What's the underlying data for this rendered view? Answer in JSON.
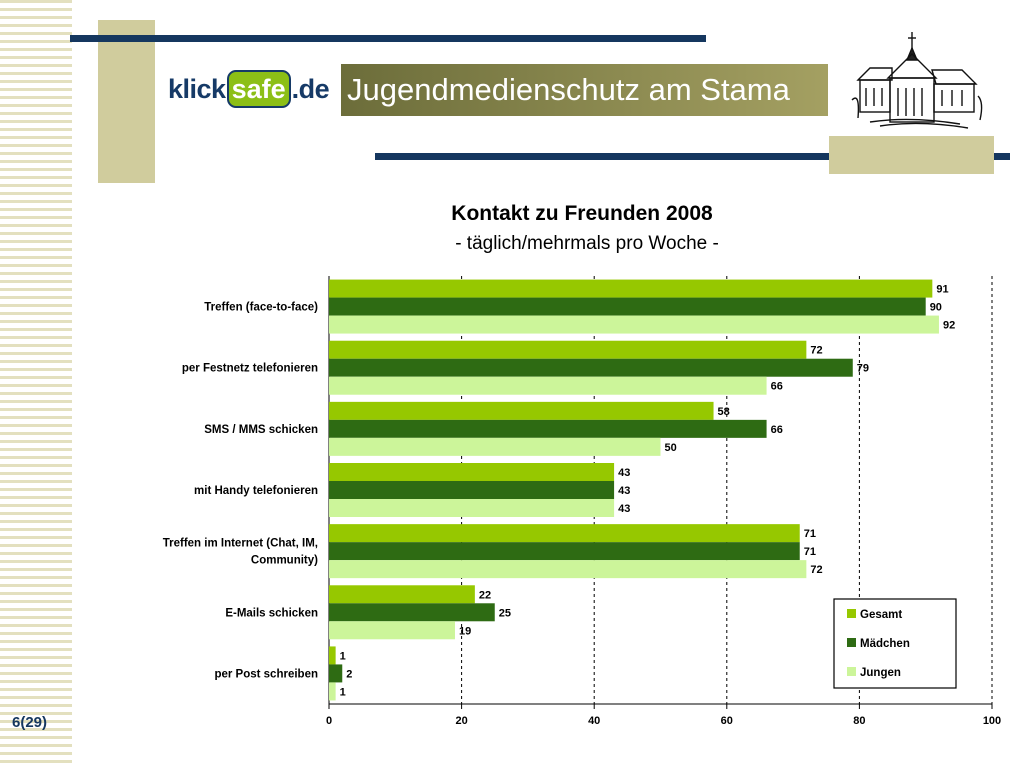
{
  "header": {
    "logo_klick": "klick",
    "logo_safe": "safe",
    "logo_de": ".de",
    "title": "Jugendmedienschutz am Stama"
  },
  "footer": {
    "page_number": "6(29)"
  },
  "colors": {
    "gesamt": "#96c800",
    "maedchen": "#2e6b13",
    "jungen": "#ccf59a",
    "navy": "#15375f",
    "tan": "#d0cc9d"
  },
  "chart_data": {
    "type": "bar",
    "orientation": "horizontal",
    "title": "Kontakt zu Freunden 2008",
    "subtitle": "- täglich/mehrmals pro Woche -",
    "categories": [
      [
        "Treffen (face-to-face)"
      ],
      [
        "per Festnetz telefonieren"
      ],
      [
        "SMS / MMS schicken"
      ],
      [
        "mit Handy telefonieren"
      ],
      [
        "Treffen im Internet (Chat, IM,",
        "Community)"
      ],
      [
        "E-Mails schicken"
      ],
      [
        "per Post schreiben"
      ]
    ],
    "series": [
      {
        "name": "Gesamt",
        "color": "#96c800",
        "values": [
          91,
          72,
          58,
          43,
          71,
          22,
          1
        ]
      },
      {
        "name": "Mädchen",
        "color": "#2e6b13",
        "values": [
          90,
          79,
          66,
          43,
          71,
          25,
          2
        ]
      },
      {
        "name": "Jungen",
        "color": "#ccf59a",
        "values": [
          92,
          66,
          50,
          43,
          72,
          19,
          1
        ]
      }
    ],
    "xlim": [
      0,
      100
    ],
    "xticks": [
      0,
      20,
      40,
      60,
      80,
      100
    ],
    "grid": "vertical dashed",
    "legend": "bottom-right"
  }
}
